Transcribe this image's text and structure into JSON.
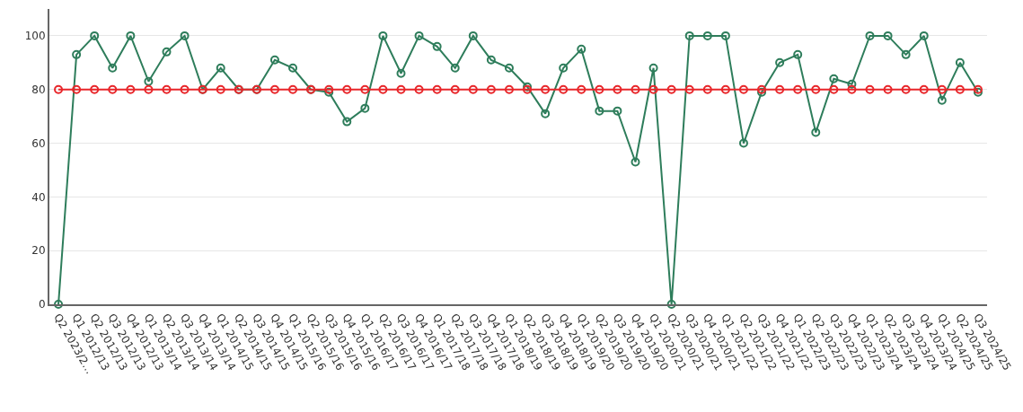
{
  "chart_data": {
    "type": "line",
    "categories": [
      "Q2 2023/2…",
      "Q1 2012/13",
      "Q2 2012/13",
      "Q3 2012/13",
      "Q4 2012/13",
      "Q1 2013/14",
      "Q2 2013/14",
      "Q3 2013/14",
      "Q4 2013/14",
      "Q1 2014/15",
      "Q2 2014/15",
      "Q3 2014/15",
      "Q4 2014/15",
      "Q1 2015/16",
      "Q2 2015/16",
      "Q3 2015/16",
      "Q4 2015/16",
      "Q1 2016/17",
      "Q2 2016/17",
      "Q3 2016/17",
      "Q4 2016/17",
      "Q1 2017/18",
      "Q2 2017/18",
      "Q3 2017/18",
      "Q4 2017/18",
      "Q1 2018/19",
      "Q2 2018/19",
      "Q3 2018/19",
      "Q4 2018/19",
      "Q1 2019/20",
      "Q2 2019/20",
      "Q3 2019/20",
      "Q4 2019/20",
      "Q1 2020/21",
      "Q2 2020/21",
      "Q3 2020/21",
      "Q4 2020/21",
      "Q1 2021/22",
      "Q2 2021/22",
      "Q3 2021/22",
      "Q4 2021/22",
      "Q1 2022/23",
      "Q2 2022/23",
      "Q3 2022/23",
      "Q4 2022/23",
      "Q1 2023/24",
      "Q2 2023/24",
      "Q3 2023/24",
      "Q4 2023/24",
      "Q1 2024/25",
      "Q2 2024/25",
      "Q3 2024/25"
    ],
    "series": [
      {
        "color": "#2e7d5b",
        "values": [
          0,
          93,
          100,
          88,
          100,
          83,
          94,
          100,
          80,
          88,
          80,
          80,
          91,
          88,
          80,
          79,
          68,
          73,
          100,
          86,
          100,
          96,
          88,
          100,
          91,
          88,
          81,
          71,
          88,
          95,
          72,
          72,
          53,
          88,
          0,
          100,
          100,
          100,
          60,
          79,
          90,
          93,
          64,
          84,
          82,
          100,
          100,
          93,
          100,
          76,
          90,
          79
        ]
      },
      {
        "color": "#e8262a",
        "values": [
          80,
          80,
          80,
          80,
          80,
          80,
          80,
          80,
          80,
          80,
          80,
          80,
          80,
          80,
          80,
          80,
          80,
          80,
          80,
          80,
          80,
          80,
          80,
          80,
          80,
          80,
          80,
          80,
          80,
          80,
          80,
          80,
          80,
          80,
          80,
          80,
          80,
          80,
          80,
          80,
          80,
          80,
          80,
          80,
          80,
          80,
          80,
          80,
          80,
          80,
          80,
          80
        ]
      }
    ],
    "ylim": [
      0,
      110
    ],
    "yticks": [
      0,
      20,
      40,
      60,
      80,
      100
    ],
    "grid": "y",
    "marker": "circle",
    "line_style": "solid"
  }
}
